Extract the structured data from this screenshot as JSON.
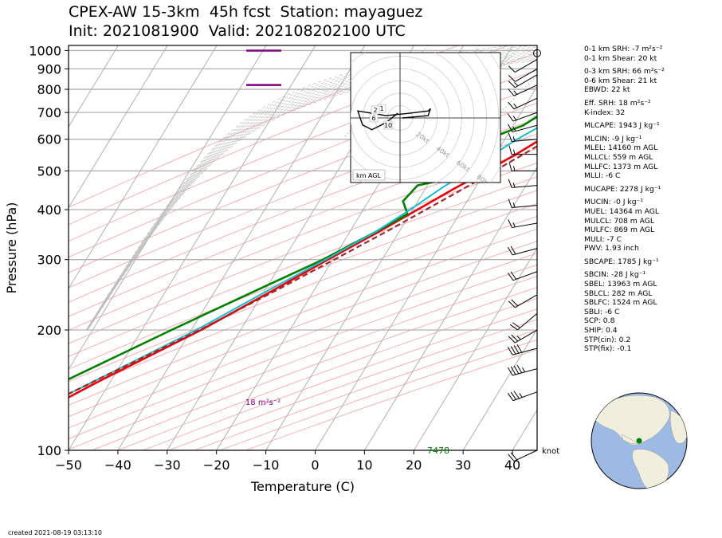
{
  "title_line1": "CPEX-AW 15-3km  45h fcst  Station: mayaguez",
  "title_line2": "Init: 2021081900  Valid: 202108202100 UTC",
  "footer": "created 2021-08-19 03:13:10",
  "colors": {
    "temperature": "#e8000b",
    "dewpoint": "#008000",
    "wetbulb": "#17becf",
    "parcel": "#9b2a2a",
    "srh_bar": "#800080",
    "isobar": "#b0b0b0",
    "isotherm": "#b0b0b0",
    "dry_adiabat": "#f4a8a8",
    "mixing_ratio": "#7fc97f"
  },
  "chart_data": {
    "type": "skew-t",
    "xlabel": "Temperature (C)",
    "ylabel": "Pressure (hPa)",
    "xlim": [
      -50,
      45
    ],
    "ylim": [
      1030,
      100
    ],
    "x_ticks": [
      "−50",
      "−40",
      "−30",
      "−20",
      "−10",
      "0",
      "10",
      "20",
      "30",
      "40"
    ],
    "x_tick_values": [
      -50,
      -40,
      -30,
      -20,
      -10,
      0,
      10,
      20,
      30,
      40
    ],
    "y_ticks": [
      "100",
      "200",
      "300",
      "400",
      "500",
      "600",
      "700",
      "800",
      "900",
      "1000"
    ],
    "y_tick_values": [
      100,
      200,
      300,
      400,
      500,
      600,
      700,
      800,
      900,
      1000
    ],
    "isobars": [
      100,
      200,
      300,
      400,
      500,
      600,
      700,
      800,
      900,
      1000
    ],
    "series": [
      {
        "key": "temperature",
        "points": [
          [
            1000,
            26.0
          ],
          [
            980,
            25.2
          ],
          [
            950,
            24.2
          ],
          [
            925,
            23.0
          ],
          [
            900,
            21.8
          ],
          [
            850,
            19.6
          ],
          [
            800,
            17.8
          ],
          [
            750,
            15.9
          ],
          [
            700,
            13.3
          ],
          [
            650,
            10.4
          ],
          [
            600,
            7.3
          ],
          [
            550,
            4.1
          ],
          [
            500,
            0.2
          ],
          [
            450,
            -4.3
          ],
          [
            400,
            -9.0
          ],
          [
            350,
            -14.4
          ],
          [
            300,
            -21.0
          ],
          [
            250,
            -28.5
          ],
          [
            200,
            -38.0
          ],
          [
            150,
            -52.0
          ],
          [
            130,
            -58.5
          ],
          [
            100,
            -64.0
          ]
        ]
      },
      {
        "key": "dewpoint",
        "points": [
          [
            1000,
            23.5
          ],
          [
            985,
            23.6
          ],
          [
            950,
            22.9
          ],
          [
            925,
            21.2
          ],
          [
            900,
            19.5
          ],
          [
            850,
            16.5
          ],
          [
            820,
            14.0
          ],
          [
            800,
            13.7
          ],
          [
            750,
            11.5
          ],
          [
            725,
            5.5
          ],
          [
            700,
            4.5
          ],
          [
            650,
            2.0
          ],
          [
            600,
            -3.5
          ],
          [
            560,
            -5.0
          ],
          [
            520,
            -3.0
          ],
          [
            485,
            -4.5
          ],
          [
            460,
            -12.0
          ],
          [
            420,
            -13.0
          ],
          [
            390,
            -10.5
          ],
          [
            350,
            -15.0
          ],
          [
            300,
            -22.0
          ],
          [
            250,
            -32.0
          ],
          [
            200,
            -44.0
          ],
          [
            150,
            -59.0
          ],
          [
            130,
            -67.0
          ],
          [
            100,
            -73.0
          ]
        ]
      },
      {
        "key": "wetbulb",
        "points": [
          [
            1000,
            24.2
          ],
          [
            950,
            23.5
          ],
          [
            900,
            20.5
          ],
          [
            850,
            17.5
          ],
          [
            800,
            14.5
          ],
          [
            750,
            12.3
          ],
          [
            700,
            9.0
          ],
          [
            650,
            5.7
          ],
          [
            600,
            2.5
          ],
          [
            550,
            -0.5
          ],
          [
            500,
            -3.5
          ],
          [
            450,
            -7.0
          ],
          [
            400,
            -10.5
          ],
          [
            350,
            -15.0
          ],
          [
            300,
            -21.5
          ],
          [
            250,
            -29.5
          ],
          [
            200,
            -39.0
          ],
          [
            150,
            -53.0
          ],
          [
            130,
            -60.0
          ],
          [
            100,
            -67.0
          ]
        ]
      },
      {
        "key": "parcel",
        "points": [
          [
            1000,
            27.5
          ],
          [
            950,
            26.0
          ],
          [
            900,
            24.0
          ],
          [
            850,
            22.0
          ],
          [
            800,
            19.8
          ],
          [
            750,
            17.4
          ],
          [
            700,
            14.8
          ],
          [
            650,
            12.0
          ],
          [
            600,
            8.9
          ],
          [
            550,
            5.6
          ],
          [
            500,
            1.8
          ],
          [
            450,
            -2.4
          ],
          [
            400,
            -7.3
          ],
          [
            350,
            -12.9
          ],
          [
            300,
            -19.7
          ],
          [
            250,
            -27.9
          ],
          [
            200,
            -38.3
          ],
          [
            150,
            -53.0
          ],
          [
            120,
            -64.0
          ],
          [
            100,
            -72.0
          ]
        ]
      }
    ],
    "annotations": {
      "eff_srh_label": "18 m²s⁻²",
      "eff_srh_pressure": 820,
      "bottom_bar_pressure": 1000,
      "lcl_label": "7478",
      "wind_units": "knot"
    },
    "wind_barbs": [
      {
        "p": 100,
        "dir": 245,
        "spd": 20
      },
      {
        "p": 140,
        "dir": 250,
        "spd": 35
      },
      {
        "p": 160,
        "dir": 255,
        "spd": 45
      },
      {
        "p": 180,
        "dir": 255,
        "spd": 40
      },
      {
        "p": 200,
        "dir": 240,
        "spd": 25
      },
      {
        "p": 220,
        "dir": 230,
        "spd": 20
      },
      {
        "p": 245,
        "dir": 240,
        "spd": 20
      },
      {
        "p": 280,
        "dir": 250,
        "spd": 20
      },
      {
        "p": 320,
        "dir": 255,
        "spd": 20
      },
      {
        "p": 370,
        "dir": 260,
        "spd": 15
      },
      {
        "p": 410,
        "dir": 265,
        "spd": 15
      },
      {
        "p": 460,
        "dir": 265,
        "spd": 15
      },
      {
        "p": 500,
        "dir": 270,
        "spd": 15
      },
      {
        "p": 550,
        "dir": 270,
        "spd": 15
      },
      {
        "p": 600,
        "dir": 265,
        "spd": 15
      },
      {
        "p": 650,
        "dir": 255,
        "spd": 15
      },
      {
        "p": 700,
        "dir": 250,
        "spd": 15
      },
      {
        "p": 760,
        "dir": 245,
        "spd": 15
      },
      {
        "p": 820,
        "dir": 245,
        "spd": 15
      },
      {
        "p": 870,
        "dir": 240,
        "spd": 15
      },
      {
        "p": 900,
        "dir": 240,
        "spd": 10
      },
      {
        "p": 950,
        "dir": 240,
        "spd": 10
      }
    ],
    "hodograph": {
      "ring_labels": [
        "20kt",
        "40kt",
        "60kt",
        "80kt"
      ],
      "ring_values": [
        20,
        40,
        60,
        80
      ],
      "height_labels": [
        "1",
        "2",
        "6",
        "10"
      ],
      "legend": "km AGL",
      "points": [
        [
          -1,
          2
        ],
        [
          -6,
          -2
        ],
        [
          -12,
          -5
        ],
        [
          -16,
          -3
        ],
        [
          -18,
          3
        ],
        [
          -12,
          2
        ],
        [
          -6,
          1
        ],
        [
          4,
          2
        ],
        [
          12,
          3
        ],
        [
          13,
          4
        ],
        [
          12,
          1
        ],
        [
          1,
          0
        ]
      ]
    }
  },
  "stats": [
    "0-1 km SRH: -7 m²s⁻²",
    "0-1 km Shear: 20 kt",
    "0-3 km SRH: 66 m²s⁻²",
    "0-6 km Shear: 21 kt",
    "EBWD: 22 kt",
    "Eff. SRH: 18 m²s⁻²",
    "K-index: 32",
    "MLCAPE: 1943 J kg⁻¹",
    "MLCIN: -9 J kg⁻¹",
    "MLEL: 14160 m AGL",
    "MLLCL: 559 m AGL",
    "MLLFC: 1373 m AGL",
    "MLLI: -6 C",
    "MUCAPE: 2278 J kg⁻¹",
    "MUCIN: -0 J kg⁻¹",
    "MUEL: 14364 m AGL",
    "MULCL: 708 m AGL",
    "MULFC: 869 m AGL",
    "MULI: -7 C",
    "PWV: 1.93 inch",
    "SBCAPE: 1785 J kg⁻¹",
    "SBCIN: -28 J kg⁻¹",
    "SBEL: 13963 m AGL",
    "SBLCL: 282 m AGL",
    "SBLFC: 1524 m AGL",
    "SBLI: -6 C",
    "SCP: 0.8",
    "SHIP: 0.4",
    "STP(cin): 0.2",
    "STP(fix): -0.1"
  ]
}
